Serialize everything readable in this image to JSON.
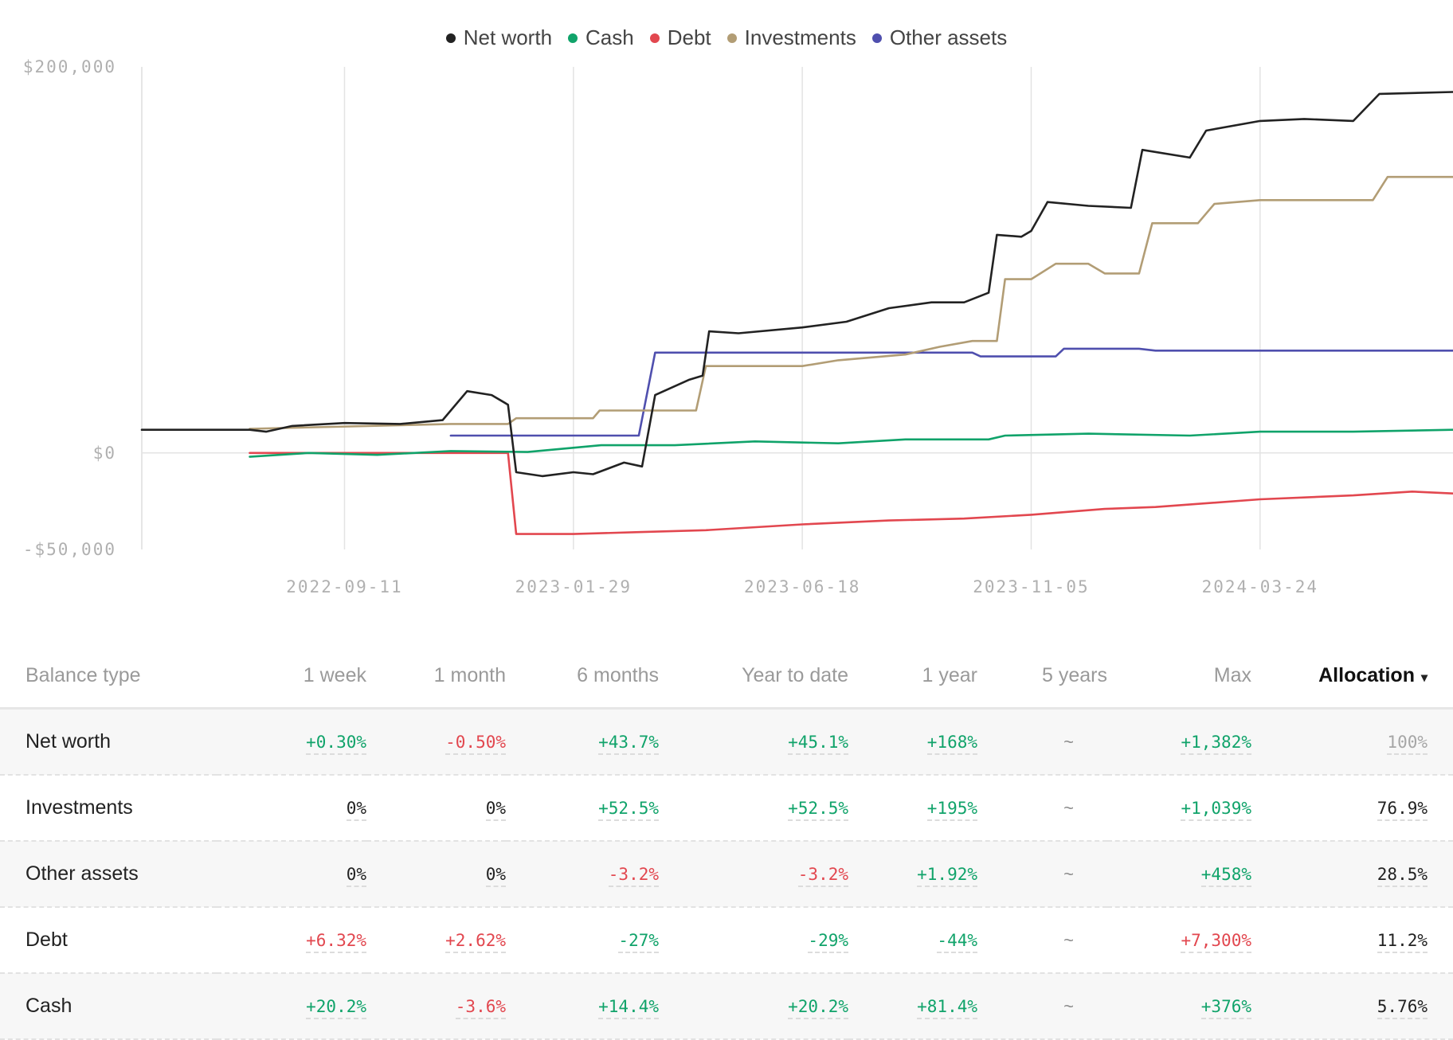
{
  "chart_data": {
    "type": "line",
    "y_ticks": [
      "$200,000",
      "$0",
      "-$50,000"
    ],
    "x_ticks": [
      "2022-09-11",
      "2023-01-29",
      "2023-06-18",
      "2023-11-05",
      "2024-03-24"
    ],
    "ylim": [
      -50000,
      200000
    ],
    "xlim": [
      "2022-05-10",
      "2024-07-20"
    ],
    "grid": "vertical",
    "legend_position": "top-center",
    "series": [
      {
        "name": "Net worth",
        "color": "#222222",
        "points": [
          [
            "2022-05-10",
            12000
          ],
          [
            "2022-07-15",
            12000
          ],
          [
            "2022-07-25",
            11000
          ],
          [
            "2022-08-10",
            14000
          ],
          [
            "2022-09-11",
            15500
          ],
          [
            "2022-10-15",
            15000
          ],
          [
            "2022-11-10",
            17000
          ],
          [
            "2022-11-25",
            32000
          ],
          [
            "2022-12-10",
            30000
          ],
          [
            "2022-12-20",
            25000
          ],
          [
            "2022-12-25",
            -10000
          ],
          [
            "2023-01-10",
            -12000
          ],
          [
            "2023-01-29",
            -10000
          ],
          [
            "2023-02-10",
            -11000
          ],
          [
            "2023-03-01",
            -5000
          ],
          [
            "2023-03-12",
            -7000
          ],
          [
            "2023-03-20",
            30000
          ],
          [
            "2023-04-10",
            38000
          ],
          [
            "2023-04-18",
            40000
          ],
          [
            "2023-04-22",
            63000
          ],
          [
            "2023-05-10",
            62000
          ],
          [
            "2023-06-18",
            65000
          ],
          [
            "2023-07-15",
            68000
          ],
          [
            "2023-08-10",
            75000
          ],
          [
            "2023-09-05",
            78000
          ],
          [
            "2023-09-25",
            78000
          ],
          [
            "2023-10-10",
            83000
          ],
          [
            "2023-10-15",
            113000
          ],
          [
            "2023-10-30",
            112000
          ],
          [
            "2023-11-05",
            115000
          ],
          [
            "2023-11-15",
            130000
          ],
          [
            "2023-12-10",
            128000
          ],
          [
            "2024-01-05",
            127000
          ],
          [
            "2024-01-12",
            157000
          ],
          [
            "2024-02-10",
            153000
          ],
          [
            "2024-02-20",
            167000
          ],
          [
            "2024-03-24",
            172000
          ],
          [
            "2024-04-20",
            173000
          ],
          [
            "2024-05-20",
            172000
          ],
          [
            "2024-06-05",
            186000
          ],
          [
            "2024-07-20",
            187000
          ]
        ]
      },
      {
        "name": "Cash",
        "color": "#10a36a",
        "points": [
          [
            "2022-07-15",
            -2000
          ],
          [
            "2022-08-20",
            0
          ],
          [
            "2022-10-01",
            -1000
          ],
          [
            "2022-11-15",
            1000
          ],
          [
            "2023-01-01",
            500
          ],
          [
            "2023-02-15",
            4000
          ],
          [
            "2023-04-01",
            4000
          ],
          [
            "2023-05-20",
            6000
          ],
          [
            "2023-07-10",
            5000
          ],
          [
            "2023-08-20",
            7000
          ],
          [
            "2023-10-10",
            7000
          ],
          [
            "2023-10-20",
            9000
          ],
          [
            "2023-12-10",
            10000
          ],
          [
            "2024-02-10",
            9000
          ],
          [
            "2024-03-24",
            11000
          ],
          [
            "2024-05-20",
            11000
          ],
          [
            "2024-07-20",
            12000
          ]
        ]
      },
      {
        "name": "Debt",
        "color": "#e2474f",
        "points": [
          [
            "2022-07-15",
            0
          ],
          [
            "2022-08-20",
            0
          ],
          [
            "2022-10-01",
            0
          ],
          [
            "2022-11-15",
            0
          ],
          [
            "2022-12-20",
            0
          ],
          [
            "2022-12-25",
            -42000
          ],
          [
            "2023-01-29",
            -42000
          ],
          [
            "2023-03-10",
            -41000
          ],
          [
            "2023-04-20",
            -40000
          ],
          [
            "2023-06-18",
            -37000
          ],
          [
            "2023-08-10",
            -35000
          ],
          [
            "2023-09-25",
            -34000
          ],
          [
            "2023-11-05",
            -32000
          ],
          [
            "2023-12-20",
            -29000
          ],
          [
            "2024-01-20",
            -28000
          ],
          [
            "2024-03-24",
            -24000
          ],
          [
            "2024-05-20",
            -22000
          ],
          [
            "2024-06-25",
            -20000
          ],
          [
            "2024-07-20",
            -21000
          ]
        ]
      },
      {
        "name": "Investments",
        "color": "#b29d75",
        "points": [
          [
            "2022-07-15",
            12500
          ],
          [
            "2022-11-15",
            15000
          ],
          [
            "2022-12-20",
            15000
          ],
          [
            "2022-12-25",
            18000
          ],
          [
            "2023-02-10",
            18000
          ],
          [
            "2023-02-14",
            22000
          ],
          [
            "2023-04-14",
            22000
          ],
          [
            "2023-04-20",
            45000
          ],
          [
            "2023-06-18",
            45000
          ],
          [
            "2023-07-10",
            48000
          ],
          [
            "2023-08-20",
            51000
          ],
          [
            "2023-09-10",
            55000
          ],
          [
            "2023-09-30",
            58000
          ],
          [
            "2023-10-15",
            58000
          ],
          [
            "2023-10-20",
            90000
          ],
          [
            "2023-11-05",
            90000
          ],
          [
            "2023-11-20",
            98000
          ],
          [
            "2023-12-10",
            98000
          ],
          [
            "2023-12-20",
            93000
          ],
          [
            "2024-01-10",
            93000
          ],
          [
            "2024-01-18",
            119000
          ],
          [
            "2024-02-15",
            119000
          ],
          [
            "2024-02-25",
            129000
          ],
          [
            "2024-03-24",
            131000
          ],
          [
            "2024-06-01",
            131000
          ],
          [
            "2024-06-10",
            143000
          ],
          [
            "2024-07-20",
            143000
          ]
        ]
      },
      {
        "name": "Other assets",
        "color": "#4f4fae",
        "points": [
          [
            "2022-11-15",
            9000
          ],
          [
            "2023-03-10",
            9000
          ],
          [
            "2023-03-20",
            52000
          ],
          [
            "2023-09-30",
            52000
          ],
          [
            "2023-10-05",
            50000
          ],
          [
            "2023-11-20",
            50000
          ],
          [
            "2023-11-25",
            54000
          ],
          [
            "2024-01-10",
            54000
          ],
          [
            "2024-01-20",
            53000
          ],
          [
            "2024-07-20",
            53000
          ]
        ]
      }
    ]
  },
  "table": {
    "columns": [
      "Balance type",
      "1 week",
      "1 month",
      "6 months",
      "Year to date",
      "1 year",
      "5 years",
      "Max",
      "Allocation"
    ],
    "active_sort": "Allocation",
    "sort_icon": "▾",
    "rows": [
      {
        "label": "Net worth",
        "cells": [
          {
            "text": "+0.30%",
            "tone": "pos"
          },
          {
            "text": "-0.50%",
            "tone": "neg"
          },
          {
            "text": "+43.7%",
            "tone": "pos"
          },
          {
            "text": "+45.1%",
            "tone": "pos"
          },
          {
            "text": "+168%",
            "tone": "pos"
          },
          {
            "text": "~",
            "tone": "tilde"
          },
          {
            "text": "+1,382%",
            "tone": "pos"
          },
          {
            "text": "100%",
            "tone": "muted"
          }
        ]
      },
      {
        "label": "Investments",
        "cells": [
          {
            "text": "0%",
            "tone": "neu"
          },
          {
            "text": "0%",
            "tone": "neu"
          },
          {
            "text": "+52.5%",
            "tone": "pos"
          },
          {
            "text": "+52.5%",
            "tone": "pos"
          },
          {
            "text": "+195%",
            "tone": "pos"
          },
          {
            "text": "~",
            "tone": "tilde"
          },
          {
            "text": "+1,039%",
            "tone": "pos"
          },
          {
            "text": "76.9%",
            "tone": "neu"
          }
        ]
      },
      {
        "label": "Other assets",
        "cells": [
          {
            "text": "0%",
            "tone": "neu"
          },
          {
            "text": "0%",
            "tone": "neu"
          },
          {
            "text": "-3.2%",
            "tone": "neg"
          },
          {
            "text": "-3.2%",
            "tone": "neg"
          },
          {
            "text": "+1.92%",
            "tone": "pos"
          },
          {
            "text": "~",
            "tone": "tilde"
          },
          {
            "text": "+458%",
            "tone": "pos"
          },
          {
            "text": "28.5%",
            "tone": "neu"
          }
        ]
      },
      {
        "label": "Debt",
        "cells": [
          {
            "text": "+6.32%",
            "tone": "neg"
          },
          {
            "text": "+2.62%",
            "tone": "neg"
          },
          {
            "text": "-27%",
            "tone": "pos"
          },
          {
            "text": "-29%",
            "tone": "pos"
          },
          {
            "text": "-44%",
            "tone": "pos"
          },
          {
            "text": "~",
            "tone": "tilde"
          },
          {
            "text": "+7,300%",
            "tone": "neg"
          },
          {
            "text": "11.2%",
            "tone": "neu"
          }
        ]
      },
      {
        "label": "Cash",
        "cells": [
          {
            "text": "+20.2%",
            "tone": "pos"
          },
          {
            "text": "-3.6%",
            "tone": "neg"
          },
          {
            "text": "+14.4%",
            "tone": "pos"
          },
          {
            "text": "+20.2%",
            "tone": "pos"
          },
          {
            "text": "+81.4%",
            "tone": "pos"
          },
          {
            "text": "~",
            "tone": "tilde"
          },
          {
            "text": "+376%",
            "tone": "pos"
          },
          {
            "text": "5.76%",
            "tone": "neu"
          }
        ]
      }
    ]
  }
}
